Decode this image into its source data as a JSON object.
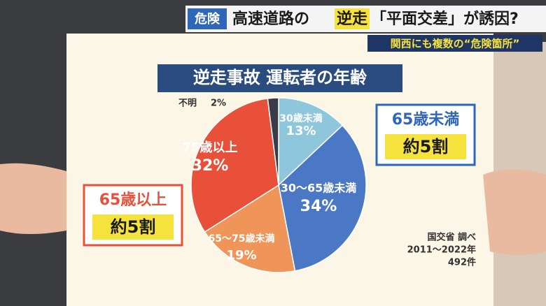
{
  "banner": {
    "tag": "危険",
    "lead": "高速道路の",
    "highlight": "逆走",
    "rest": "「平面交差」が誘因?",
    "sub": "関西にも複数の“危険箇所”"
  },
  "chart_data": {
    "type": "pie",
    "title": "逆走事故 運転者の年齢",
    "categories": [
      "30歳未満",
      "30〜65歳未満",
      "65〜75歳未満",
      "75歳以上",
      "不明"
    ],
    "values": [
      13,
      34,
      19,
      32,
      2
    ],
    "value_labels": [
      "13%",
      "34%",
      "19%",
      "32%",
      "2%"
    ],
    "colors": [
      "#8ec6dc",
      "#4a78c4",
      "#f0955a",
      "#e8503a",
      "#3a3a48"
    ],
    "callouts": [
      {
        "label": "65歳未満",
        "value": "約5割",
        "color": "#2f66b8"
      },
      {
        "label": "65歳以上",
        "value": "約5割",
        "color": "#e8503a"
      }
    ],
    "source": [
      "国交省 調べ",
      "2011〜2022年",
      "492件"
    ]
  }
}
